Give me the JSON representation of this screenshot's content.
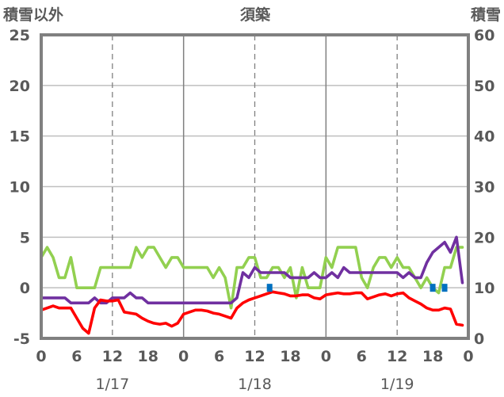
{
  "chart_data": {
    "type": "line",
    "title": "須築",
    "left_axis_label": "積雪以外",
    "right_axis_label": "積雪",
    "x_hour_ticks": [
      "0",
      "6",
      "12",
      "18",
      "0",
      "6",
      "12",
      "18",
      "0",
      "6",
      "12",
      "18",
      "0"
    ],
    "x_date_labels": [
      "1/17",
      "1/18",
      "1/19"
    ],
    "y_left": {
      "range": [
        -5,
        25
      ],
      "ticks": [
        "-5",
        "0",
        "5",
        "10",
        "15",
        "20",
        "25"
      ]
    },
    "y_right": {
      "range": [
        0,
        60
      ],
      "ticks": [
        "0",
        "10",
        "20",
        "30",
        "40",
        "50",
        "60"
      ]
    },
    "x_range_hours": [
      0,
      72
    ],
    "grid": "vertical dashed every 12h, solid at day boundaries",
    "series": [
      {
        "color": "#92D050",
        "axis": "left",
        "points": [
          [
            0,
            3
          ],
          [
            1,
            4
          ],
          [
            2,
            3
          ],
          [
            3,
            1
          ],
          [
            4,
            1
          ],
          [
            5,
            3
          ],
          [
            6,
            0
          ],
          [
            7,
            0
          ],
          [
            8,
            0
          ],
          [
            9,
            0
          ],
          [
            10,
            2
          ],
          [
            11,
            2
          ],
          [
            12,
            2
          ],
          [
            13,
            2
          ],
          [
            14,
            2
          ],
          [
            15,
            2
          ],
          [
            16,
            4
          ],
          [
            17,
            3
          ],
          [
            18,
            4
          ],
          [
            19,
            4
          ],
          [
            20,
            3
          ],
          [
            21,
            2
          ],
          [
            22,
            3
          ],
          [
            23,
            3
          ],
          [
            24,
            2
          ],
          [
            25,
            2
          ],
          [
            26,
            2
          ],
          [
            27,
            2
          ],
          [
            28,
            2
          ],
          [
            29,
            1
          ],
          [
            30,
            2
          ],
          [
            31,
            1
          ],
          [
            32,
            -2
          ],
          [
            33,
            2
          ],
          [
            34,
            2
          ],
          [
            35,
            3
          ],
          [
            36,
            3
          ],
          [
            37,
            1
          ],
          [
            38,
            1
          ],
          [
            39,
            2
          ],
          [
            40,
            2
          ],
          [
            41,
            1
          ],
          [
            42,
            2
          ],
          [
            43,
            -1
          ],
          [
            44,
            2
          ],
          [
            45,
            0
          ],
          [
            46,
            0
          ],
          [
            47,
            0
          ],
          [
            48,
            3
          ],
          [
            49,
            2
          ],
          [
            50,
            4
          ],
          [
            51,
            4
          ],
          [
            52,
            4
          ],
          [
            53,
            4
          ],
          [
            54,
            1
          ],
          [
            55,
            0
          ],
          [
            56,
            2
          ],
          [
            57,
            3
          ],
          [
            58,
            3
          ],
          [
            59,
            2
          ],
          [
            60,
            3
          ],
          [
            61,
            2
          ],
          [
            62,
            2
          ],
          [
            63,
            1
          ],
          [
            64,
            0
          ],
          [
            65,
            1
          ],
          [
            66,
            0
          ],
          [
            67,
            -0.5
          ],
          [
            68,
            2
          ],
          [
            69,
            2
          ],
          [
            70,
            4
          ],
          [
            71,
            4
          ]
        ]
      },
      {
        "color": "#7030A0",
        "axis": "left",
        "points": [
          [
            0,
            -1
          ],
          [
            1,
            -1
          ],
          [
            2,
            -1
          ],
          [
            3,
            -1
          ],
          [
            4,
            -1
          ],
          [
            5,
            -1.5
          ],
          [
            6,
            -1.5
          ],
          [
            7,
            -1.5
          ],
          [
            8,
            -1.5
          ],
          [
            9,
            -1
          ],
          [
            10,
            -1.5
          ],
          [
            11,
            -1.5
          ],
          [
            12,
            -1
          ],
          [
            13,
            -1
          ],
          [
            14,
            -1
          ],
          [
            15,
            -0.5
          ],
          [
            16,
            -1
          ],
          [
            17,
            -1
          ],
          [
            18,
            -1.5
          ],
          [
            19,
            -1.5
          ],
          [
            20,
            -1.5
          ],
          [
            21,
            -1.5
          ],
          [
            22,
            -1.5
          ],
          [
            23,
            -1.5
          ],
          [
            24,
            -1.5
          ],
          [
            25,
            -1.5
          ],
          [
            26,
            -1.5
          ],
          [
            27,
            -1.5
          ],
          [
            28,
            -1.5
          ],
          [
            29,
            -1.5
          ],
          [
            30,
            -1.5
          ],
          [
            31,
            -1.5
          ],
          [
            32,
            -1.5
          ],
          [
            33,
            -1
          ],
          [
            34,
            1.5
          ],
          [
            35,
            1
          ],
          [
            36,
            2
          ],
          [
            37,
            1.5
          ],
          [
            38,
            1.5
          ],
          [
            39,
            1.5
          ],
          [
            40,
            1.5
          ],
          [
            41,
            1.5
          ],
          [
            42,
            1
          ],
          [
            43,
            1
          ],
          [
            44,
            1
          ],
          [
            45,
            1
          ],
          [
            46,
            1.5
          ],
          [
            47,
            1
          ],
          [
            48,
            1
          ],
          [
            49,
            1.5
          ],
          [
            50,
            1
          ],
          [
            51,
            2
          ],
          [
            52,
            1.5
          ],
          [
            53,
            1.5
          ],
          [
            54,
            1.5
          ],
          [
            55,
            1.5
          ],
          [
            56,
            1.5
          ],
          [
            57,
            1.5
          ],
          [
            58,
            1.5
          ],
          [
            59,
            1.5
          ],
          [
            60,
            1.5
          ],
          [
            61,
            1
          ],
          [
            62,
            1.5
          ],
          [
            63,
            1
          ],
          [
            64,
            1
          ],
          [
            65,
            2.5
          ],
          [
            66,
            3.5
          ],
          [
            67,
            4
          ],
          [
            68,
            4.5
          ],
          [
            69,
            3.5
          ],
          [
            70,
            5
          ],
          [
            71,
            0.5
          ]
        ]
      },
      {
        "color": "#FF0000",
        "axis": "left",
        "points": [
          [
            0,
            -2.2
          ],
          [
            1,
            -2
          ],
          [
            2,
            -1.8
          ],
          [
            3,
            -2
          ],
          [
            4,
            -2
          ],
          [
            5,
            -2
          ],
          [
            6,
            -3
          ],
          [
            7,
            -4
          ],
          [
            8,
            -4.5
          ],
          [
            9,
            -2
          ],
          [
            10,
            -1.2
          ],
          [
            11,
            -1.3
          ],
          [
            12,
            -1.3
          ],
          [
            13,
            -1.2
          ],
          [
            14,
            -2.4
          ],
          [
            15,
            -2.5
          ],
          [
            16,
            -2.6
          ],
          [
            17,
            -3
          ],
          [
            18,
            -3.3
          ],
          [
            19,
            -3.5
          ],
          [
            20,
            -3.6
          ],
          [
            21,
            -3.5
          ],
          [
            22,
            -3.8
          ],
          [
            23,
            -3.5
          ],
          [
            24,
            -2.6
          ],
          [
            25,
            -2.4
          ],
          [
            26,
            -2.2
          ],
          [
            27,
            -2.2
          ],
          [
            28,
            -2.3
          ],
          [
            29,
            -2.5
          ],
          [
            30,
            -2.6
          ],
          [
            31,
            -2.8
          ],
          [
            32,
            -3
          ],
          [
            33,
            -2
          ],
          [
            34,
            -1.5
          ],
          [
            35,
            -1.2
          ],
          [
            36,
            -1
          ],
          [
            37,
            -0.8
          ],
          [
            38,
            -0.6
          ],
          [
            39,
            -0.4
          ],
          [
            40,
            -0.5
          ],
          [
            41,
            -0.6
          ],
          [
            42,
            -0.8
          ],
          [
            43,
            -0.8
          ],
          [
            44,
            -0.7
          ],
          [
            45,
            -0.7
          ],
          [
            46,
            -1
          ],
          [
            47,
            -1.1
          ],
          [
            48,
            -0.7
          ],
          [
            49,
            -0.6
          ],
          [
            50,
            -0.5
          ],
          [
            51,
            -0.6
          ],
          [
            52,
            -0.6
          ],
          [
            53,
            -0.5
          ],
          [
            54,
            -0.5
          ],
          [
            55,
            -1.1
          ],
          [
            56,
            -0.9
          ],
          [
            57,
            -0.7
          ],
          [
            58,
            -0.6
          ],
          [
            59,
            -0.8
          ],
          [
            60,
            -0.6
          ],
          [
            61,
            -0.5
          ],
          [
            62,
            -1
          ],
          [
            63,
            -1.3
          ],
          [
            64,
            -1.6
          ],
          [
            65,
            -2
          ],
          [
            66,
            -2.2
          ],
          [
            67,
            -2.2
          ],
          [
            68,
            -2
          ],
          [
            69,
            -2.1
          ],
          [
            70,
            -3.6
          ],
          [
            71,
            -3.7
          ]
        ]
      },
      {
        "color": "#0070C0",
        "axis": "right",
        "style": "bars",
        "points": [
          [
            38.5,
            10
          ],
          [
            66,
            10
          ],
          [
            68,
            10
          ]
        ]
      }
    ]
  }
}
